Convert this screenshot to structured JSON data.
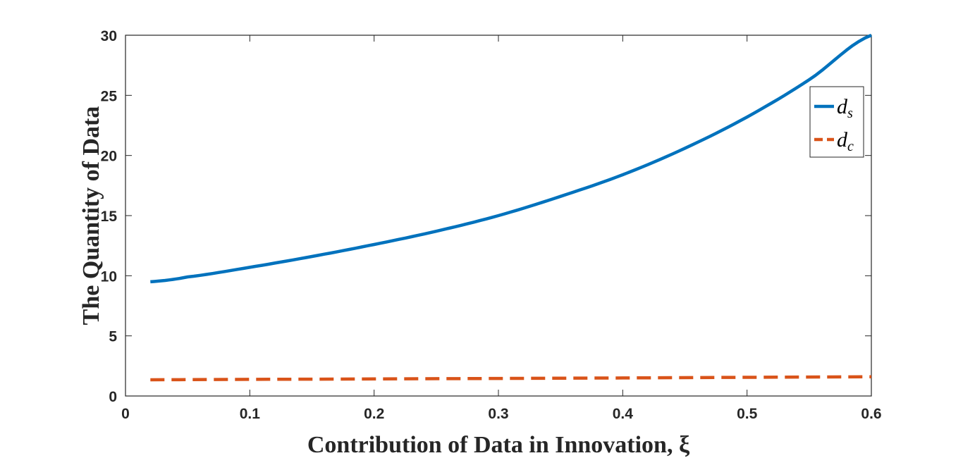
{
  "chart_data": {
    "type": "line",
    "title": "",
    "xlabel": "Contribution of Data in Innovation, ξ",
    "ylabel": "The Quantity of Data",
    "xlim": [
      0,
      0.6
    ],
    "ylim": [
      0,
      30
    ],
    "x_ticks": [
      0,
      0.1,
      0.2,
      0.3,
      0.4,
      0.5,
      0.6
    ],
    "x_tick_labels": [
      "0",
      "0.1",
      "0.2",
      "0.3",
      "0.4",
      "0.5",
      "0.6"
    ],
    "y_ticks": [
      0,
      5,
      10,
      15,
      20,
      25,
      30
    ],
    "y_tick_labels": [
      "0",
      "5",
      "10",
      "15",
      "20",
      "25",
      "30"
    ],
    "grid": false,
    "legend_position": "top-right",
    "series": [
      {
        "name": "d_s",
        "legend_base": "d",
        "legend_sub": "s",
        "color": "#0072BD",
        "style": "solid",
        "x": [
          0.02,
          0.05,
          0.1,
          0.15,
          0.2,
          0.25,
          0.3,
          0.35,
          0.4,
          0.45,
          0.5,
          0.55,
          0.6
        ],
        "y": [
          9.5,
          9.9,
          10.7,
          11.6,
          12.6,
          13.7,
          15.0,
          16.6,
          18.4,
          20.6,
          23.2,
          26.3,
          30.0
        ]
      },
      {
        "name": "d_c",
        "legend_base": "d",
        "legend_sub": "c",
        "color": "#D95319",
        "style": "dashed",
        "x": [
          0.02,
          0.1,
          0.2,
          0.3,
          0.4,
          0.5,
          0.6
        ],
        "y": [
          1.35,
          1.38,
          1.42,
          1.46,
          1.5,
          1.55,
          1.6
        ]
      }
    ]
  }
}
